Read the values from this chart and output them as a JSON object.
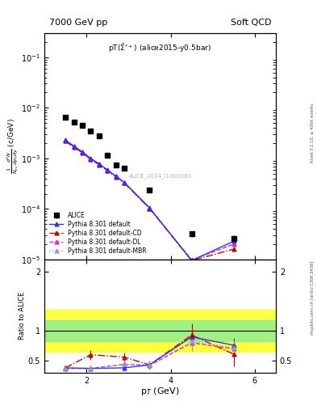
{
  "title_left": "7000 GeV pp",
  "title_right": "Soft QCD",
  "annotation": "pT($\\bar{\\Sigma}^{*+}$) (alice2015-y0.5bar)",
  "watermark": "ALICE_2014_I1300380",
  "right_label": "mcplots.cern.ch [arXiv:1306.3436]",
  "right_label2": "Rivet 3.1.10, ≥ 400k events",
  "xlabel": "p$_{T}$ (GeV)",
  "ylabel": "$\\frac{1}{N_{ev}}\\frac{d^{2}N}{dp_{T}dy}$ (c/GeV)",
  "ylabel_ratio": "Ratio to ALICE",
  "alice_pt": [
    1.5,
    1.7,
    1.9,
    2.1,
    2.3,
    2.5,
    2.7,
    2.9,
    3.5,
    4.5,
    5.5
  ],
  "alice_val": [
    0.0065,
    0.0052,
    0.0045,
    0.0035,
    0.0028,
    0.00115,
    0.00075,
    0.00065,
    0.000235,
    3.2e-05,
    2.6e-05
  ],
  "alice_yerr": [
    0.0004,
    0.00035,
    0.0003,
    0.0002,
    0.00018,
    9e-05,
    5e-05,
    4e-05,
    1.5e-05,
    4e-06,
    4e-06
  ],
  "default_pt": [
    1.5,
    1.7,
    1.9,
    2.1,
    2.3,
    2.5,
    2.7,
    2.9,
    3.5,
    4.5,
    5.5
  ],
  "default_val": [
    0.0023,
    0.00175,
    0.00135,
    0.001,
    0.00078,
    0.00059,
    0.000445,
    0.000335,
    0.000105,
    9.5e-06,
    2.3e-05
  ],
  "cd_pt": [
    1.5,
    1.7,
    1.9,
    2.1,
    2.3,
    2.5,
    2.7,
    2.9,
    3.5,
    4.5,
    5.5
  ],
  "cd_val": [
    0.0022,
    0.00165,
    0.0013,
    0.00095,
    0.00075,
    0.00057,
    0.00043,
    0.000325,
    0.000102,
    9.5e-06,
    1.6e-05
  ],
  "dl_pt": [
    1.5,
    1.7,
    1.9,
    2.1,
    2.3,
    2.5,
    2.7,
    2.9,
    3.5,
    4.5,
    5.5
  ],
  "dl_val": [
    0.00225,
    0.0017,
    0.00132,
    0.00098,
    0.00076,
    0.00058,
    0.000435,
    0.00033,
    0.000103,
    9.8e-06,
    2e-05
  ],
  "mbr_pt": [
    1.5,
    1.7,
    1.9,
    2.1,
    2.3,
    2.5,
    2.7,
    2.9,
    3.5,
    4.5,
    5.5
  ],
  "mbr_val": [
    0.00228,
    0.00172,
    0.00133,
    0.00099,
    0.00077,
    0.000585,
    0.000438,
    0.000332,
    0.000104,
    9.6e-06,
    2.1e-05
  ],
  "ratio_default_pt": [
    1.5,
    2.1,
    2.9,
    3.5,
    4.5,
    5.5
  ],
  "ratio_default_val": [
    0.38,
    0.37,
    0.38,
    0.43,
    0.9,
    0.76
  ],
  "ratio_default_err": [
    0.04,
    0.05,
    0.06,
    0.06,
    0.15,
    0.12
  ],
  "ratio_cd_pt": [
    1.5,
    2.1,
    2.9,
    3.5,
    4.5,
    5.5
  ],
  "ratio_cd_val": [
    0.38,
    0.6,
    0.56,
    0.43,
    0.93,
    0.61
  ],
  "ratio_cd_err": [
    0.04,
    0.08,
    0.08,
    0.06,
    0.2,
    0.2
  ],
  "ratio_dl_pt": [
    1.5,
    2.1,
    2.9,
    3.5,
    4.5,
    5.5
  ],
  "ratio_dl_val": [
    0.37,
    0.37,
    0.44,
    0.42,
    0.8,
    0.7
  ],
  "ratio_dl_err": [
    0.04,
    0.05,
    0.06,
    0.05,
    0.14,
    0.11
  ],
  "ratio_mbr_pt": [
    1.5,
    2.1,
    2.9,
    3.5,
    4.5,
    5.5
  ],
  "ratio_mbr_val": [
    0.37,
    0.37,
    0.44,
    0.43,
    0.82,
    0.72
  ],
  "ratio_mbr_err": [
    0.04,
    0.05,
    0.06,
    0.05,
    0.14,
    0.11
  ],
  "green_band": [
    0.82,
    1.18
  ],
  "yellow_band": [
    0.65,
    1.35
  ],
  "color_default": "#3333ff",
  "color_cd": "#cc0000",
  "color_dl": "#cc33cc",
  "color_mbr": "#9999bb",
  "xlim": [
    1.0,
    6.5
  ],
  "ylim_main": [
    1e-05,
    0.3
  ],
  "ylim_ratio": [
    0.3,
    2.2
  ]
}
